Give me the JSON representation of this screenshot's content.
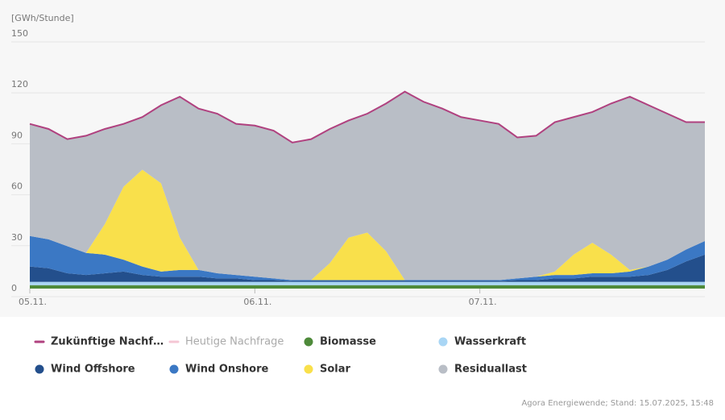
{
  "chart_data": {
    "type": "stacked_area",
    "y_label": "[GWh/Stunde]",
    "source": "Agora Energiewende; Stand: 15.07.2025, 15:48",
    "x": [
      0,
      2,
      4,
      6,
      8,
      10,
      12,
      14,
      16,
      18,
      20,
      22,
      24,
      26,
      28,
      30,
      32,
      34,
      36,
      38,
      40,
      42,
      44,
      46,
      48,
      50,
      52,
      54,
      56,
      58,
      60,
      62,
      64,
      66,
      68,
      70,
      72
    ],
    "xlim": [
      0,
      72
    ],
    "xticks": [
      {
        "value": 0,
        "label": "05.11."
      },
      {
        "value": 24,
        "label": "06.11."
      },
      {
        "value": 48,
        "label": "07.11."
      }
    ],
    "ylim": [
      0,
      150
    ],
    "yticks": [
      0,
      30,
      60,
      90,
      120,
      150
    ],
    "grid": true,
    "series": [
      {
        "name": "Zukünftige Nachf…",
        "color": "#b0417f",
        "kind": "line",
        "values": [
          97,
          94,
          88,
          90,
          94,
          97,
          101,
          108,
          113,
          106,
          103,
          97,
          96,
          93,
          86,
          88,
          94,
          99,
          103,
          109,
          116,
          110,
          106,
          101,
          99,
          97,
          89,
          90,
          98,
          101,
          104,
          109,
          113,
          108,
          103,
          98,
          98
        ]
      },
      {
        "name": "Heutige Nachfrage",
        "color": "#f4c6d4",
        "kind": "line",
        "visible": false
      },
      {
        "name": "Biomasse",
        "color": "#4e8a3a",
        "kind": "area",
        "values": [
          2,
          2,
          2,
          2,
          2,
          2,
          2,
          2,
          2,
          2,
          2,
          2,
          2,
          2,
          2,
          2,
          2,
          2,
          2,
          2,
          2,
          2,
          2,
          2,
          2,
          2,
          2,
          2,
          2,
          2,
          2,
          2,
          2,
          2,
          2,
          2,
          2
        ]
      },
      {
        "name": "Wasserkraft",
        "color": "#a9d6f5",
        "kind": "area",
        "values": [
          2,
          2,
          2,
          2,
          2,
          2,
          2,
          2,
          2,
          2,
          2,
          2,
          2,
          2,
          2,
          2,
          2,
          2,
          2,
          2,
          2,
          2,
          2,
          2,
          2,
          2,
          2,
          2,
          2,
          2,
          2,
          2,
          2,
          2,
          2,
          2,
          2
        ]
      },
      {
        "name": "Wind Offshore",
        "color": "#234f8c",
        "kind": "area",
        "values": [
          9,
          8,
          5,
          4,
          5,
          6,
          4,
          3,
          3,
          3,
          2,
          2,
          1,
          1,
          0.5,
          0.5,
          0.5,
          0.5,
          0.5,
          0.5,
          0.5,
          0.5,
          0.5,
          0.5,
          0.5,
          0.5,
          1,
          1,
          2,
          2,
          3,
          3,
          3,
          4,
          7,
          12,
          16
        ]
      },
      {
        "name": "Wind Onshore",
        "color": "#3b78c4",
        "kind": "area",
        "values": [
          18,
          17,
          16,
          13,
          11,
          7,
          5,
          3,
          4,
          4,
          3,
          2,
          2,
          1,
          0.5,
          0.5,
          0.5,
          0.5,
          0.5,
          0.5,
          0.5,
          0.5,
          0.5,
          0.5,
          0.5,
          0.5,
          1,
          2,
          2,
          2,
          2,
          2,
          3,
          5,
          6,
          7,
          8
        ]
      },
      {
        "name": "Solar",
        "color": "#f9e04b",
        "kind": "area",
        "values": [
          0,
          0,
          0,
          0,
          18,
          43,
          57,
          52,
          19,
          0,
          0,
          0,
          0,
          0,
          0,
          0,
          10,
          25,
          28,
          17,
          0,
          0,
          0,
          0,
          0,
          0,
          0,
          0,
          2,
          12,
          18,
          11,
          1,
          0,
          0,
          0,
          0
        ]
      },
      {
        "name": "Residuallast",
        "color": "#b9bec6",
        "kind": "area",
        "values": [
          66,
          65,
          63,
          69,
          56,
          37,
          31,
          46,
          83,
          95,
          94,
          89,
          89,
          87,
          81,
          83,
          79,
          69,
          70,
          87,
          111,
          105,
          101,
          96,
          94,
          92,
          83,
          83,
          88,
          81,
          77,
          89,
          102,
          95,
          86,
          75,
          70
        ]
      }
    ]
  }
}
